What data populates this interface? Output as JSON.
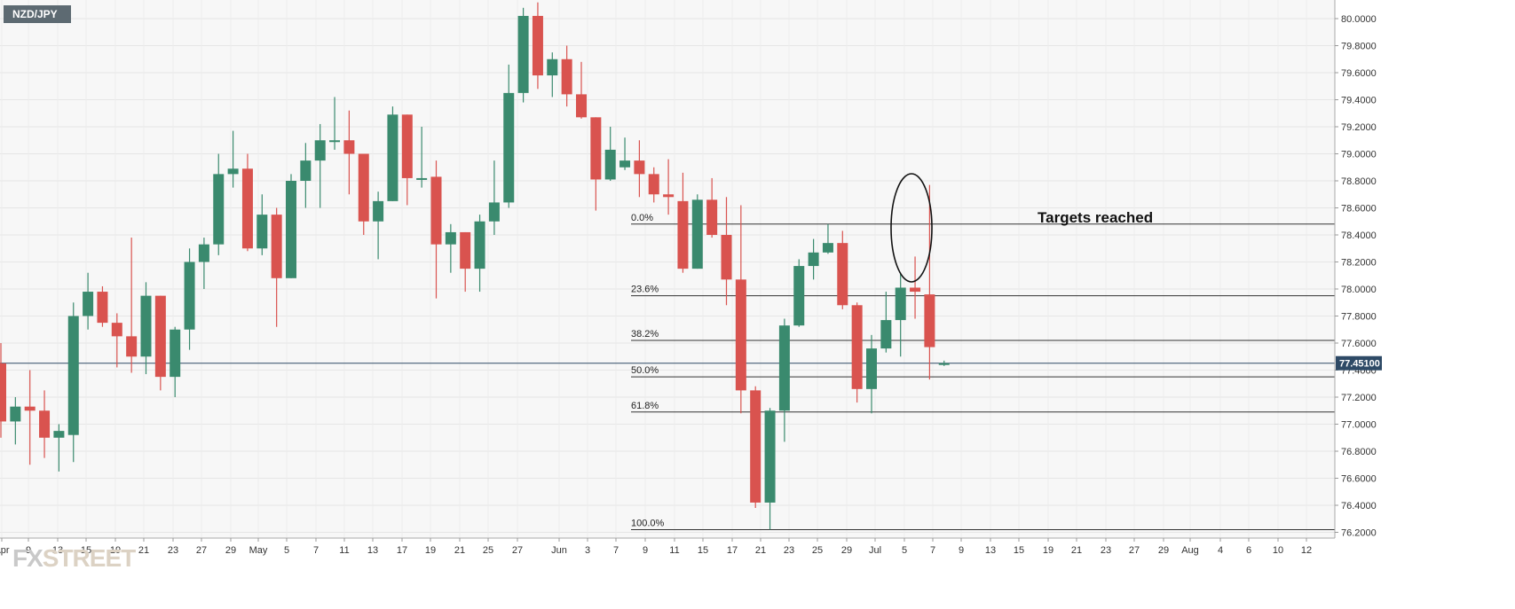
{
  "symbol": "NZD/JPY",
  "annotation": "Targets reached",
  "logo": {
    "fx": "FX",
    "rest": "STREET"
  },
  "colors": {
    "up": "#3a8a6e",
    "down": "#d9534f",
    "price_label_bg": "#2e4a66",
    "current_line": "#2e4a66"
  },
  "chart_data": {
    "type": "candlestick",
    "ylim": [
      76.2,
      80.08
    ],
    "y_ticks": [
      "80.0000",
      "79.8000",
      "79.6000",
      "79.4000",
      "79.2000",
      "79.0000",
      "78.8000",
      "78.6000",
      "78.4000",
      "78.2000",
      "78.0000",
      "77.8000",
      "77.6000",
      "77.4000",
      "77.2000",
      "77.0000",
      "76.8000",
      "76.6000",
      "76.4000",
      "76.2000"
    ],
    "x_ticks": [
      "Apr",
      "9",
      "13",
      "15",
      "19",
      "21",
      "23",
      "27",
      "29",
      "May",
      "5",
      "7",
      "11",
      "13",
      "17",
      "19",
      "21",
      "25",
      "27",
      "Jun",
      "3",
      "7",
      "9",
      "11",
      "15",
      "17",
      "21",
      "23",
      "25",
      "29",
      "Jul",
      "5",
      "7",
      "9",
      "13",
      "15",
      "19",
      "21",
      "23",
      "27",
      "29",
      "Aug",
      "4",
      "6",
      "10",
      "12"
    ],
    "current_price": {
      "value": 77.451,
      "label": "77.45100"
    },
    "fibonacci": [
      {
        "label": "0.0%",
        "value": 78.48
      },
      {
        "label": "23.6%",
        "value": 77.95
      },
      {
        "label": "38.2%",
        "value": 77.62
      },
      {
        "label": "50.0%",
        "value": 77.35
      },
      {
        "label": "61.8%",
        "value": 77.09
      },
      {
        "label": "100.0%",
        "value": 76.22
      }
    ],
    "candles": [
      {
        "o": 77.45,
        "h": 77.6,
        "l": 76.9,
        "c": 77.02
      },
      {
        "o": 77.02,
        "h": 77.2,
        "l": 76.85,
        "c": 77.13
      },
      {
        "o": 77.13,
        "h": 77.4,
        "l": 76.7,
        "c": 77.1
      },
      {
        "o": 77.1,
        "h": 77.25,
        "l": 76.75,
        "c": 76.9
      },
      {
        "o": 76.9,
        "h": 77.0,
        "l": 76.65,
        "c": 76.95
      },
      {
        "o": 76.92,
        "h": 77.9,
        "l": 76.72,
        "c": 77.8
      },
      {
        "o": 77.8,
        "h": 78.12,
        "l": 77.7,
        "c": 77.98
      },
      {
        "o": 77.98,
        "h": 78.02,
        "l": 77.72,
        "c": 77.75
      },
      {
        "o": 77.75,
        "h": 77.82,
        "l": 77.42,
        "c": 77.65
      },
      {
        "o": 77.65,
        "h": 78.38,
        "l": 77.38,
        "c": 77.5
      },
      {
        "o": 77.5,
        "h": 78.05,
        "l": 77.37,
        "c": 77.95
      },
      {
        "o": 77.95,
        "h": 77.95,
        "l": 77.25,
        "c": 77.35
      },
      {
        "o": 77.35,
        "h": 77.72,
        "l": 77.2,
        "c": 77.7
      },
      {
        "o": 77.7,
        "h": 78.3,
        "l": 77.55,
        "c": 78.2
      },
      {
        "o": 78.2,
        "h": 78.38,
        "l": 78.0,
        "c": 78.33
      },
      {
        "o": 78.33,
        "h": 79.0,
        "l": 78.25,
        "c": 78.85
      },
      {
        "o": 78.85,
        "h": 79.17,
        "l": 78.75,
        "c": 78.89
      },
      {
        "o": 78.89,
        "h": 79.0,
        "l": 78.28,
        "c": 78.3
      },
      {
        "o": 78.3,
        "h": 78.7,
        "l": 78.25,
        "c": 78.55
      },
      {
        "o": 78.55,
        "h": 78.6,
        "l": 77.72,
        "c": 78.08
      },
      {
        "o": 78.08,
        "h": 78.85,
        "l": 78.08,
        "c": 78.8
      },
      {
        "o": 78.8,
        "h": 79.08,
        "l": 78.6,
        "c": 78.95
      },
      {
        "o": 78.95,
        "h": 79.22,
        "l": 78.6,
        "c": 79.1
      },
      {
        "o": 79.1,
        "h": 79.42,
        "l": 79.03,
        "c": 79.1
      },
      {
        "o": 79.1,
        "h": 79.32,
        "l": 78.7,
        "c": 79.0
      },
      {
        "o": 79.0,
        "h": 79.0,
        "l": 78.4,
        "c": 78.5
      },
      {
        "o": 78.5,
        "h": 78.72,
        "l": 78.22,
        "c": 78.65
      },
      {
        "o": 78.65,
        "h": 79.35,
        "l": 78.65,
        "c": 79.29
      },
      {
        "o": 79.29,
        "h": 79.29,
        "l": 78.62,
        "c": 78.82
      },
      {
        "o": 78.82,
        "h": 79.2,
        "l": 78.75,
        "c": 78.82
      },
      {
        "o": 78.83,
        "h": 78.95,
        "l": 77.93,
        "c": 78.33
      },
      {
        "o": 78.33,
        "h": 78.48,
        "l": 78.12,
        "c": 78.42
      },
      {
        "o": 78.42,
        "h": 78.42,
        "l": 77.98,
        "c": 78.15
      },
      {
        "o": 78.15,
        "h": 78.55,
        "l": 77.98,
        "c": 78.5
      },
      {
        "o": 78.5,
        "h": 78.95,
        "l": 78.4,
        "c": 78.64
      },
      {
        "o": 78.64,
        "h": 79.66,
        "l": 78.6,
        "c": 79.45
      },
      {
        "o": 79.45,
        "h": 80.08,
        "l": 79.38,
        "c": 80.02
      },
      {
        "o": 80.02,
        "h": 80.12,
        "l": 79.48,
        "c": 79.58
      },
      {
        "o": 79.58,
        "h": 79.75,
        "l": 79.42,
        "c": 79.7
      },
      {
        "o": 79.7,
        "h": 79.8,
        "l": 79.35,
        "c": 79.44
      },
      {
        "o": 79.44,
        "h": 79.68,
        "l": 79.26,
        "c": 79.27
      },
      {
        "o": 79.27,
        "h": 79.27,
        "l": 78.58,
        "c": 78.81
      },
      {
        "o": 78.81,
        "h": 79.2,
        "l": 78.8,
        "c": 79.03
      },
      {
        "o": 78.9,
        "h": 79.12,
        "l": 78.88,
        "c": 78.95
      },
      {
        "o": 78.95,
        "h": 79.1,
        "l": 78.68,
        "c": 78.85
      },
      {
        "o": 78.85,
        "h": 78.9,
        "l": 78.64,
        "c": 78.7
      },
      {
        "o": 78.7,
        "h": 78.96,
        "l": 78.55,
        "c": 78.68
      },
      {
        "o": 78.65,
        "h": 78.86,
        "l": 78.12,
        "c": 78.15
      },
      {
        "o": 78.15,
        "h": 78.7,
        "l": 78.15,
        "c": 78.66
      },
      {
        "o": 78.66,
        "h": 78.82,
        "l": 78.38,
        "c": 78.4
      },
      {
        "o": 78.4,
        "h": 78.68,
        "l": 77.88,
        "c": 78.07
      },
      {
        "o": 78.07,
        "h": 78.62,
        "l": 77.08,
        "c": 77.25
      },
      {
        "o": 77.25,
        "h": 77.28,
        "l": 76.38,
        "c": 76.42
      },
      {
        "o": 76.42,
        "h": 77.12,
        "l": 76.22,
        "c": 77.1
      },
      {
        "o": 77.1,
        "h": 77.78,
        "l": 76.87,
        "c": 77.73
      },
      {
        "o": 77.73,
        "h": 78.22,
        "l": 77.72,
        "c": 78.17
      },
      {
        "o": 78.17,
        "h": 78.37,
        "l": 78.07,
        "c": 78.27
      },
      {
        "o": 78.27,
        "h": 78.48,
        "l": 78.26,
        "c": 78.34
      },
      {
        "o": 78.34,
        "h": 78.43,
        "l": 77.85,
        "c": 77.88
      },
      {
        "o": 77.88,
        "h": 77.9,
        "l": 77.16,
        "c": 77.26
      },
      {
        "o": 77.26,
        "h": 77.66,
        "l": 77.08,
        "c": 77.56
      },
      {
        "o": 77.56,
        "h": 77.98,
        "l": 77.53,
        "c": 77.77
      },
      {
        "o": 77.77,
        "h": 78.12,
        "l": 77.5,
        "c": 78.01
      },
      {
        "o": 78.01,
        "h": 78.24,
        "l": 77.78,
        "c": 77.98
      },
      {
        "o": 77.96,
        "h": 78.77,
        "l": 77.33,
        "c": 77.57
      },
      {
        "o": 77.44,
        "h": 77.47,
        "l": 77.43,
        "c": 77.451
      }
    ]
  }
}
